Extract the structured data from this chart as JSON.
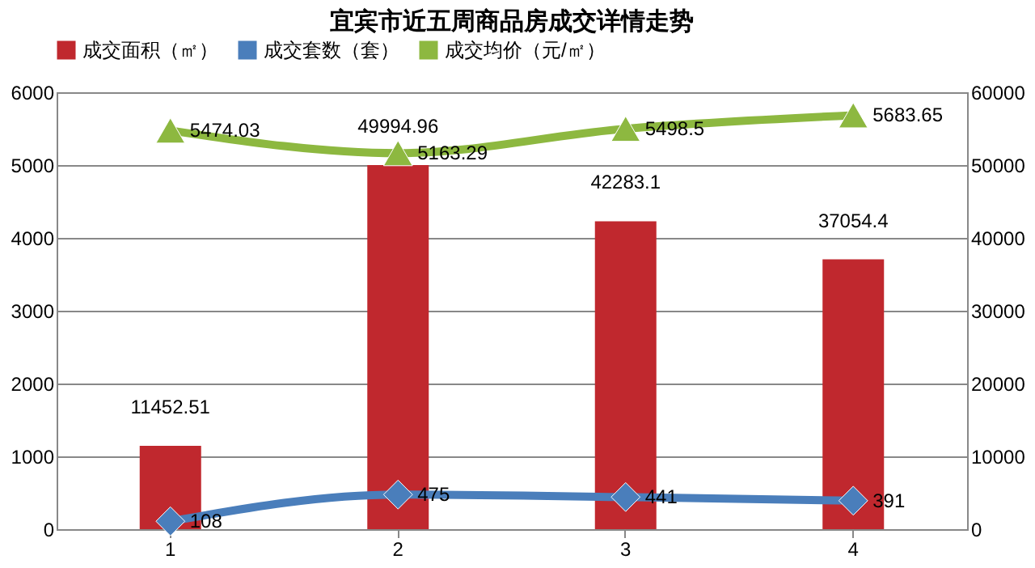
{
  "chart_data": {
    "type": "bar",
    "title": "宜宾市近五周商品房成交详情走势",
    "categories": [
      "1",
      "2",
      "3",
      "4"
    ],
    "series": [
      {
        "name": "成交面积（㎡）",
        "axis": "y2",
        "color": "#c0282e",
        "values": [
          11452.51,
          49994.96,
          42283.1,
          37054.4
        ]
      },
      {
        "name": "成交套数（套）",
        "type": "line",
        "color": "#4a7ebb",
        "marker": "diamond",
        "values": [
          108,
          475,
          441,
          391
        ]
      },
      {
        "name": "成交均价（元/㎡）",
        "type": "line",
        "color": "#8db840",
        "marker": "triangle",
        "values": [
          5474.03,
          5163.29,
          5498.5,
          5683.65
        ]
      }
    ],
    "ylim": [
      0,
      6000
    ],
    "yticks": [
      0,
      1000,
      2000,
      3000,
      4000,
      5000,
      6000
    ],
    "y2lim": [
      0,
      60000
    ],
    "y2ticks": [
      0,
      10000,
      20000,
      30000,
      40000,
      50000,
      60000
    ],
    "grid": "y",
    "legend": "top",
    "data_labels": true
  }
}
